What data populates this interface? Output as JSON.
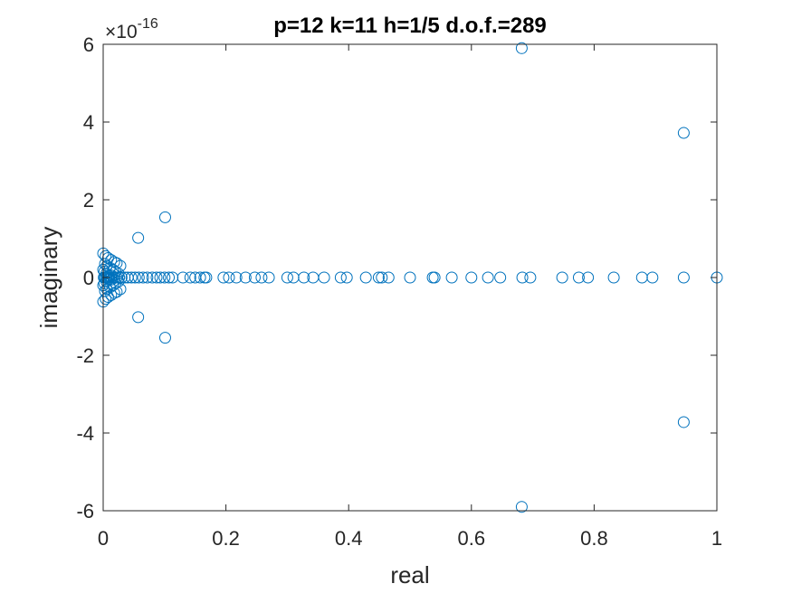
{
  "chart_data": {
    "type": "scatter",
    "title": "p=12 k=11 h=1/5 d.o.f.=289",
    "xlabel": "real",
    "ylabel": "imaginary",
    "xlim": [
      0,
      1
    ],
    "ylim": [
      -6,
      6
    ],
    "y_exponent": "×10-16",
    "y_exponent_base": "×10",
    "y_exponent_power": "-16",
    "x_ticks": [
      0,
      0.2,
      0.4,
      0.6,
      0.8,
      1
    ],
    "x_tick_labels": [
      "0",
      "0.2",
      "0.4",
      "0.6",
      "0.8",
      "1"
    ],
    "y_ticks": [
      -6,
      -4,
      -2,
      0,
      2,
      4,
      6
    ],
    "y_tick_labels": [
      "-6",
      "-4",
      "-2",
      "0",
      "2",
      "4",
      "6"
    ],
    "marker": "open-circle",
    "color": "#0072BD",
    "grid": false,
    "legend": "none",
    "series": [
      {
        "x": [
          0.682,
          0.682,
          0.946,
          0.946,
          0.101,
          0.101,
          0.057,
          0.057,
          0.0,
          0.0,
          0.004,
          0.004,
          0.008,
          0.008,
          0.013,
          0.013,
          0.018,
          0.018,
          0.022,
          0.022,
          0.028,
          0.028,
          0.003,
          0.003,
          0.006,
          0.006,
          0.011,
          0.011,
          0.016,
          0.016,
          0.02,
          0.02,
          0.025,
          0.025,
          0.0,
          0.0,
          0.002,
          0.002,
          0.005,
          0.005,
          0.009,
          0.009,
          0.014,
          0.014,
          0.001,
          0.002,
          0.004,
          0.006,
          0.008,
          0.01,
          0.013,
          0.016,
          0.019,
          0.022,
          0.026,
          0.03,
          0.035,
          0.04,
          0.046,
          0.052,
          0.058,
          0.065,
          0.072,
          0.08,
          0.087,
          0.093,
          0.1,
          0.107,
          0.113,
          0.13,
          0.142,
          0.15,
          0.158,
          0.165,
          0.168,
          0.196,
          0.205,
          0.217,
          0.232,
          0.247,
          0.258,
          0.27,
          0.3,
          0.31,
          0.327,
          0.342,
          0.36,
          0.387,
          0.397,
          0.428,
          0.449,
          0.454,
          0.465,
          0.5,
          0.537,
          0.54,
          0.568,
          0.6,
          0.627,
          0.647,
          0.683,
          0.696,
          0.748,
          0.775,
          0.79,
          0.832,
          0.878,
          0.895,
          0.946,
          1.0
        ],
        "y": [
          5.9,
          -5.9,
          3.72,
          -3.72,
          1.55,
          -1.55,
          1.02,
          -1.02,
          0.62,
          -0.62,
          0.55,
          -0.55,
          0.5,
          -0.5,
          0.45,
          -0.45,
          0.4,
          -0.4,
          0.37,
          -0.37,
          0.3,
          -0.3,
          0.35,
          -0.35,
          0.3,
          -0.3,
          0.25,
          -0.25,
          0.2,
          -0.2,
          0.15,
          -0.15,
          0.1,
          -0.1,
          0.2,
          -0.2,
          0.15,
          -0.15,
          0.1,
          -0.1,
          0.05,
          -0.05,
          0.05,
          -0.05,
          0,
          0,
          0,
          0,
          0,
          0,
          0,
          0,
          0,
          0,
          0,
          0,
          0,
          0,
          0,
          0,
          0,
          0,
          0,
          0,
          0,
          0,
          0,
          0,
          0,
          0,
          0,
          0,
          0,
          0,
          0,
          0,
          0,
          0,
          0,
          0,
          0,
          0,
          0,
          0,
          0,
          0,
          0,
          0,
          0,
          0,
          0,
          0,
          0,
          0,
          0,
          0,
          0,
          0,
          0,
          0,
          0,
          0,
          0,
          0,
          0,
          0,
          0,
          0,
          0,
          0
        ]
      }
    ]
  }
}
